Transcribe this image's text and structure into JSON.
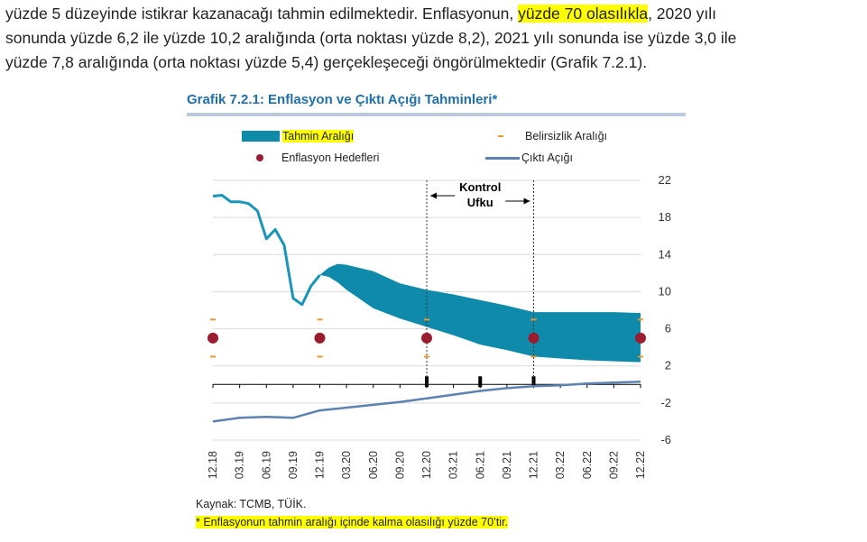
{
  "paragraph": {
    "line1_a": "yüzde 5 düzeyinde istikrar kazanacağı tahmin edilmektedir. Enflasyonun, ",
    "line1_highlight": "yüzde 70 olasılıkla",
    "line1_b": ", 2020 yılı",
    "line2": "sonunda yüzde 6,2 ile yüzde 10,2 aralığında (orta noktası yüzde 8,2), 2021 yılı sonunda ise yüzde 3,0 ile",
    "line3": "yüzde 7,8 aralığında (orta noktası yüzde 5,4) gerçekleşeceği öngörülmektedir (Grafik 7.2.1)."
  },
  "figure": {
    "title": "Grafik 7.2.1: Enflasyon ve Çıktı Açığı Tahminleri*",
    "legend": {
      "band": "Tahmin Aralığı",
      "uncertainty": "Belirsizlik Aralığı",
      "targets": "Enflasyon Hedefleri",
      "output_gap": "Çıktı Açığı"
    },
    "control_horizon": [
      "Kontrol",
      "Ufku"
    ],
    "source": "Kaynak: TCMB, TÜİK.",
    "footnote": "* Enflasyonun tahmin aralığı içinde kalma olasılığı yüzde 70’tir."
  },
  "colors": {
    "band": "#0f8aaa",
    "inflation_line": "#1a94b8",
    "output_gap": "#5b82b0",
    "target_dot": "#9b1c2e",
    "uncertainty": "#e69a2e",
    "title": "#1f6fa8",
    "highlight": "#ffff00"
  },
  "chart_data": {
    "type": "line",
    "x": [
      "12.18",
      "03.19",
      "06.19",
      "09.19",
      "12.19",
      "03.20",
      "06.20",
      "09.20",
      "12.20",
      "03.21",
      "06.21",
      "09.21",
      "12.21",
      "03.22",
      "06.22",
      "09.22",
      "12.22"
    ],
    "ylim": [
      -6,
      22
    ],
    "yticks": [
      22,
      18,
      14,
      10,
      6,
      2,
      -2,
      -6
    ],
    "inflation": [
      {
        "x": "12.18",
        "y": 20.3
      },
      {
        "x": "01.19",
        "y": 20.4
      },
      {
        "x": "02.19",
        "y": 19.7
      },
      {
        "x": "03.19",
        "y": 19.7
      },
      {
        "x": "04.19",
        "y": 19.5
      },
      {
        "x": "05.19",
        "y": 18.7
      },
      {
        "x": "06.19",
        "y": 15.7
      },
      {
        "x": "07.19",
        "y": 16.7
      },
      {
        "x": "08.19",
        "y": 15.0
      },
      {
        "x": "09.19",
        "y": 9.3
      },
      {
        "x": "10.19",
        "y": 8.6
      },
      {
        "x": "11.19",
        "y": 10.6
      },
      {
        "x": "12.19",
        "y": 11.8
      }
    ],
    "forecast_band": {
      "x": [
        "12.19",
        "01.20",
        "02.20",
        "03.20",
        "06.20",
        "09.20",
        "12.20",
        "03.21",
        "06.21",
        "09.21",
        "12.21",
        "03.22",
        "06.22",
        "09.22",
        "12.22"
      ],
      "upper": [
        11.8,
        12.6,
        13.0,
        12.9,
        12.2,
        10.9,
        10.2,
        9.7,
        9.1,
        8.5,
        7.8,
        7.8,
        7.8,
        7.8,
        7.7
      ],
      "lower": [
        11.8,
        11.6,
        11.0,
        10.2,
        8.2,
        7.1,
        6.2,
        5.3,
        4.3,
        3.7,
        3.0,
        2.8,
        2.6,
        2.5,
        2.4
      ]
    },
    "output_gap": {
      "x": [
        "12.18",
        "03.19",
        "06.19",
        "09.19",
        "12.19",
        "03.20",
        "06.20",
        "09.20",
        "12.20",
        "03.21",
        "06.21",
        "09.21",
        "12.21",
        "03.22",
        "06.22",
        "09.22",
        "12.22"
      ],
      "values": [
        -4.0,
        -3.6,
        -3.5,
        -3.6,
        -2.8,
        -2.5,
        -2.2,
        -1.9,
        -1.5,
        -1.1,
        -0.7,
        -0.4,
        -0.2,
        -0.1,
        0.1,
        0.2,
        0.3
      ]
    },
    "targets": [
      {
        "x": "12.18",
        "y": 5
      },
      {
        "x": "12.19",
        "y": 5
      },
      {
        "x": "12.20",
        "y": 5
      },
      {
        "x": "12.21",
        "y": 5
      },
      {
        "x": "12.22",
        "y": 5
      }
    ],
    "uncertainty_range": [
      {
        "x": "12.18",
        "low": 3,
        "high": 7
      },
      {
        "x": "12.19",
        "low": 3,
        "high": 7
      },
      {
        "x": "12.20",
        "low": 3,
        "high": 7
      },
      {
        "x": "12.21",
        "low": 3,
        "high": 7
      },
      {
        "x": "12.22",
        "low": 3,
        "high": 7
      }
    ],
    "control_horizon_lines": [
      "12.20",
      "12.21"
    ],
    "zero_axis_markers": [
      "12.20",
      "06.21",
      "12.21"
    ]
  }
}
